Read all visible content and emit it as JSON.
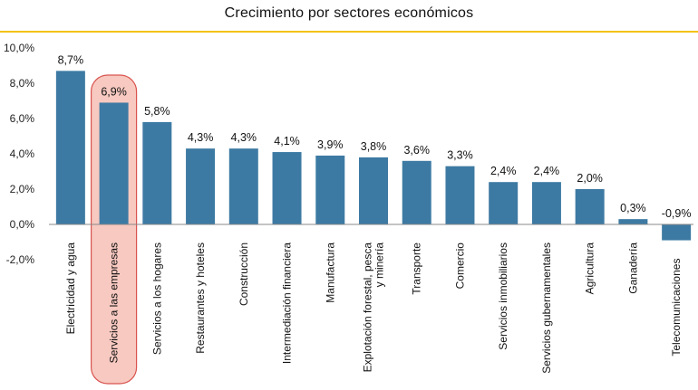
{
  "chart_data": {
    "type": "bar",
    "title": "Crecimiento por sectores económicos",
    "xlabel": "",
    "ylabel": "",
    "ylim": [
      -2,
      10
    ],
    "yticks": [
      10,
      8,
      6,
      4,
      2,
      0,
      -2
    ],
    "ytick_labels": [
      "10,0%",
      "8,0%",
      "6,0%",
      "4,0%",
      "2,0%",
      "0,0%",
      "-2,0%"
    ],
    "categories": [
      "Electricidad y agua",
      "Servicios a las empresas",
      "Servicios a los hogares",
      "Restaurantes y hoteles",
      "Construcción",
      "Intermediación financiera",
      "Manufactura",
      "Explotación forestal, pesca y minería",
      "Transporte",
      "Comercio",
      "Servicios inmobiliarios",
      "Servicios gubernamentales",
      "Agricultura",
      "Ganadería",
      "Telecomunicaciones"
    ],
    "category_label_lines": [
      [
        "Electricidad y agua"
      ],
      [
        "Servicios a las empresas"
      ],
      [
        "Servicios a los hogares"
      ],
      [
        "Restaurantes y hoteles"
      ],
      [
        "Construcción"
      ],
      [
        "Intermediación financiera"
      ],
      [
        "Manufactura"
      ],
      [
        "Explotación forestal, pesca",
        "y minería"
      ],
      [
        "Transporte"
      ],
      [
        "Comercio"
      ],
      [
        "Servicios inmobiliarios"
      ],
      [
        "Servicios gubernamentales"
      ],
      [
        "Agricultura"
      ],
      [
        "Ganadería"
      ],
      [
        "Telecomunicaciones"
      ]
    ],
    "values": [
      8.7,
      6.9,
      5.8,
      4.3,
      4.3,
      4.1,
      3.9,
      3.8,
      3.6,
      3.3,
      2.4,
      2.4,
      2.0,
      0.3,
      -0.9
    ],
    "value_labels": [
      "8,7%",
      "6,9%",
      "5,8%",
      "4,3%",
      "4,3%",
      "4,1%",
      "3,9%",
      "3,8%",
      "3,6%",
      "3,3%",
      "2,4%",
      "2,4%",
      "2,0%",
      "0,3%",
      "-0,9%"
    ],
    "highlight_index": 1,
    "colors": {
      "bar": "#3d7aa3",
      "title_rule": "#f2c314",
      "highlight_fill": "#f7c9c0",
      "highlight_stroke": "#d9534f",
      "axis": "#888888"
    }
  }
}
